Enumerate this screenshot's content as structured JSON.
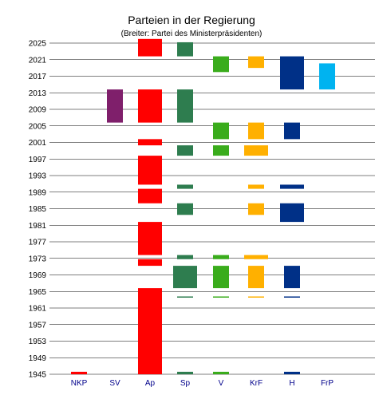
{
  "chart_data": {
    "type": "bar",
    "title": "Parteien in der Regierung",
    "subtitle": "(Breiter: Partei des Ministerpräsidenten)",
    "xlabel": "",
    "ylabel": "",
    "ylim": [
      1945,
      2026
    ],
    "y_ticks": [
      1945,
      1949,
      1953,
      1957,
      1961,
      1965,
      1969,
      1973,
      1977,
      1981,
      1985,
      1989,
      1993,
      1997,
      2001,
      2005,
      2009,
      2013,
      2017,
      2021,
      2025
    ],
    "grid": true,
    "legend": "none",
    "categories": [
      "NKP",
      "SV",
      "Ap",
      "Sp",
      "V",
      "KrF",
      "H",
      "FrP"
    ],
    "series": [
      {
        "category": "NKP",
        "color": "#ff0000",
        "periods": [
          {
            "from": 1945.0,
            "to": 1945.6,
            "pm": false
          }
        ]
      },
      {
        "category": "SV",
        "color": "#7f1f6b",
        "periods": [
          {
            "from": 2005.8,
            "to": 2013.8,
            "pm": false
          }
        ]
      },
      {
        "category": "Ap",
        "color": "#ff0000",
        "periods": [
          {
            "from": 1945.0,
            "to": 1965.8,
            "pm": true
          },
          {
            "from": 1971.2,
            "to": 1972.8,
            "pm": true
          },
          {
            "from": 1973.8,
            "to": 1981.8,
            "pm": true
          },
          {
            "from": 1986.3,
            "to": 1989.8,
            "pm": true
          },
          {
            "from": 1990.8,
            "to": 1997.8,
            "pm": true
          },
          {
            "from": 2000.3,
            "to": 2001.8,
            "pm": true
          },
          {
            "from": 2005.8,
            "to": 2013.8,
            "pm": true
          },
          {
            "from": 2021.8,
            "to": 2026.0,
            "pm": true
          }
        ]
      },
      {
        "category": "Sp",
        "color": "#2e7d4f",
        "periods": [
          {
            "from": 1945.0,
            "to": 1945.6,
            "pm": false
          },
          {
            "from": 1963.6,
            "to": 1963.8,
            "pm": false
          },
          {
            "from": 1965.8,
            "to": 1971.2,
            "pm": true
          },
          {
            "from": 1972.8,
            "to": 1973.8,
            "pm": false
          },
          {
            "from": 1983.5,
            "to": 1986.3,
            "pm": false
          },
          {
            "from": 1989.8,
            "to": 1990.8,
            "pm": false
          },
          {
            "from": 1997.8,
            "to": 2000.3,
            "pm": false
          },
          {
            "from": 2005.8,
            "to": 2013.8,
            "pm": false
          },
          {
            "from": 2021.8,
            "to": 2025.2,
            "pm": false
          }
        ]
      },
      {
        "category": "V",
        "color": "#3aac1c",
        "periods": [
          {
            "from": 1945.0,
            "to": 1945.6,
            "pm": false
          },
          {
            "from": 1963.6,
            "to": 1963.8,
            "pm": false
          },
          {
            "from": 1965.8,
            "to": 1971.2,
            "pm": false
          },
          {
            "from": 1972.8,
            "to": 1973.8,
            "pm": false
          },
          {
            "from": 1997.8,
            "to": 2000.3,
            "pm": false
          },
          {
            "from": 2001.8,
            "to": 2005.8,
            "pm": false
          },
          {
            "from": 2018.0,
            "to": 2021.8,
            "pm": false
          }
        ]
      },
      {
        "category": "KrF",
        "color": "#ffb000",
        "periods": [
          {
            "from": 1963.6,
            "to": 1963.8,
            "pm": false
          },
          {
            "from": 1965.8,
            "to": 1971.2,
            "pm": false
          },
          {
            "from": 1972.8,
            "to": 1973.8,
            "pm": true
          },
          {
            "from": 1983.5,
            "to": 1986.3,
            "pm": false
          },
          {
            "from": 1989.8,
            "to": 1990.8,
            "pm": false
          },
          {
            "from": 1997.8,
            "to": 2000.3,
            "pm": true
          },
          {
            "from": 2001.8,
            "to": 2005.8,
            "pm": false
          },
          {
            "from": 2019.0,
            "to": 2021.8,
            "pm": false
          }
        ]
      },
      {
        "category": "H",
        "color": "#003087",
        "periods": [
          {
            "from": 1945.0,
            "to": 1945.6,
            "pm": false
          },
          {
            "from": 1963.6,
            "to": 1963.8,
            "pm": false
          },
          {
            "from": 1965.8,
            "to": 1971.2,
            "pm": false
          },
          {
            "from": 1981.8,
            "to": 1986.3,
            "pm": true
          },
          {
            "from": 1989.8,
            "to": 1990.8,
            "pm": true
          },
          {
            "from": 2001.8,
            "to": 2005.8,
            "pm": false
          },
          {
            "from": 2013.8,
            "to": 2021.8,
            "pm": true
          }
        ]
      },
      {
        "category": "FrP",
        "color": "#00b3f0",
        "periods": [
          {
            "from": 2013.8,
            "to": 2020.1,
            "pm": false
          }
        ]
      }
    ]
  }
}
